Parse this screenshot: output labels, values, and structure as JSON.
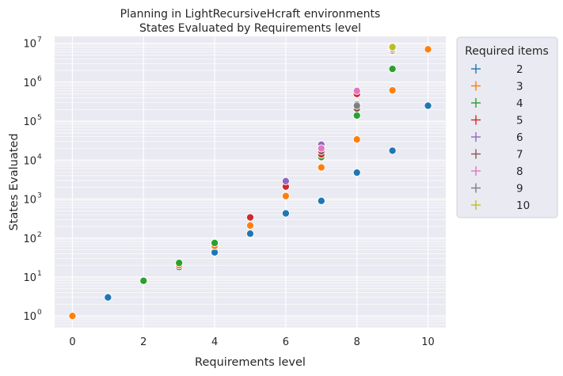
{
  "chart_data": {
    "type": "scatter",
    "title_lines": [
      "Planning in LightRecursiveHcraft environments",
      "States Evaluated by Requirements level"
    ],
    "xlabel": "Requirements level",
    "ylabel": "States Evaluated",
    "xlim": [
      -0.5,
      10.5
    ],
    "ylim": [
      0.5,
      15000000
    ],
    "yscale": "log",
    "xticks": [
      0,
      2,
      4,
      6,
      8,
      10
    ],
    "yticks": [
      1,
      10,
      100,
      1000,
      10000,
      100000,
      1000000,
      10000000
    ],
    "ytick_labels": [
      {
        "base": "10",
        "exp": "0"
      },
      {
        "base": "10",
        "exp": "1"
      },
      {
        "base": "10",
        "exp": "2"
      },
      {
        "base": "10",
        "exp": "3"
      },
      {
        "base": "10",
        "exp": "4"
      },
      {
        "base": "10",
        "exp": "5"
      },
      {
        "base": "10",
        "exp": "6"
      },
      {
        "base": "10",
        "exp": "7"
      }
    ],
    "grid": true,
    "legend_position": "outside-top-right",
    "legend_title": "Required items",
    "series": [
      {
        "name": "2",
        "color": "#1f77b4",
        "points": [
          [
            1,
            3
          ],
          [
            3,
            18
          ],
          [
            4,
            43
          ],
          [
            5,
            130
          ],
          [
            6,
            430
          ],
          [
            7,
            900
          ],
          [
            8,
            4800
          ],
          [
            9,
            17500
          ],
          [
            10,
            250000
          ]
        ]
      },
      {
        "name": "3",
        "color": "#ff7f0e",
        "points": [
          [
            0,
            1
          ],
          [
            3,
            20
          ],
          [
            4,
            63
          ],
          [
            5,
            210
          ],
          [
            6,
            1200
          ],
          [
            7,
            6500
          ],
          [
            8,
            34000
          ],
          [
            9,
            620000
          ],
          [
            10,
            7000000
          ]
        ]
      },
      {
        "name": "4",
        "color": "#2ca02c",
        "points": [
          [
            2,
            8
          ],
          [
            3,
            23
          ],
          [
            4,
            75
          ],
          [
            6,
            2000
          ],
          [
            7,
            12000
          ],
          [
            8,
            140000
          ],
          [
            9,
            2200000
          ]
        ]
      },
      {
        "name": "5",
        "color": "#d62728",
        "points": [
          [
            5,
            340
          ],
          [
            6,
            2100
          ],
          [
            7,
            14000
          ],
          [
            8,
            500000
          ],
          [
            9,
            6500000
          ]
        ]
      },
      {
        "name": "6",
        "color": "#9467bd",
        "points": [
          [
            6,
            2900
          ],
          [
            7,
            25000
          ],
          [
            8,
            270000
          ]
        ]
      },
      {
        "name": "7",
        "color": "#8c564b",
        "points": [
          [
            7,
            17000
          ],
          [
            8,
            210000
          ],
          [
            9,
            7000000
          ]
        ]
      },
      {
        "name": "8",
        "color": "#e377c2",
        "points": [
          [
            7,
            20000
          ],
          [
            8,
            600000
          ]
        ]
      },
      {
        "name": "9",
        "color": "#7f7f7f",
        "points": [
          [
            8,
            250000
          ],
          [
            9,
            7500000
          ]
        ]
      },
      {
        "name": "10",
        "color": "#bcbd22",
        "points": [
          [
            9,
            8000000
          ]
        ]
      }
    ]
  }
}
